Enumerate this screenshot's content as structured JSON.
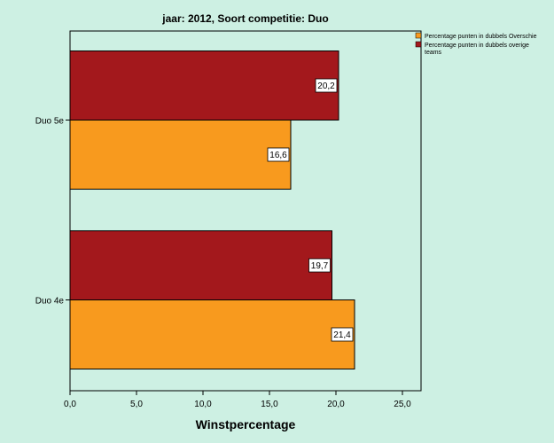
{
  "chart_data": {
    "type": "bar",
    "orientation": "horizontal",
    "title": "jaar: 2012, Soort competitie: Duo",
    "xlabel": "Winstpercentage",
    "ylabel": "",
    "xlim": [
      0,
      26.4
    ],
    "xticks": [
      "0,0",
      "5,0",
      "10,0",
      "15,0",
      "20,0",
      "25,0"
    ],
    "xtick_values": [
      0,
      5,
      10,
      15,
      20,
      25
    ],
    "categories": [
      "Duo 5e",
      "Duo 4e"
    ],
    "series": [
      {
        "name": "Percentage punten in dubbels Overschie",
        "color": "#f89a1e",
        "values": [
          16.6,
          21.4
        ],
        "labels": [
          "16,6",
          "21,4"
        ]
      },
      {
        "name": "Percentage punten in dubbels overige teams",
        "color": "#a3181c",
        "values": [
          20.2,
          19.7
        ],
        "labels": [
          "20,2",
          "19,7"
        ]
      }
    ],
    "legend_position": "top-right",
    "grid": false
  }
}
